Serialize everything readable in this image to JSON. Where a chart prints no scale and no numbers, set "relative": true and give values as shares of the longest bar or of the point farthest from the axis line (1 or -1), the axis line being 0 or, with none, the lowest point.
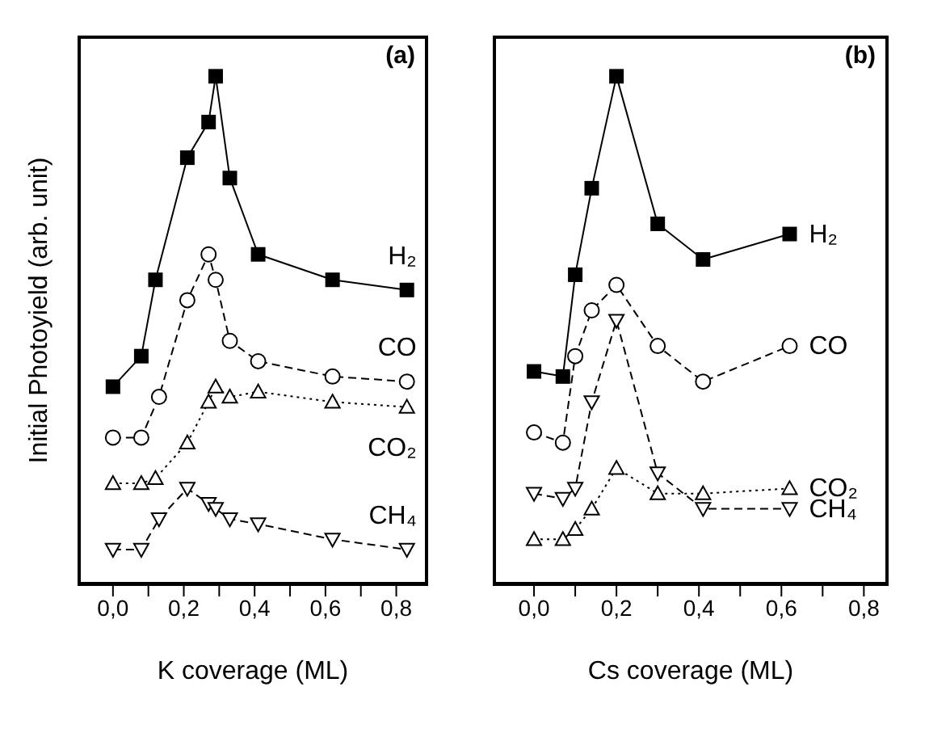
{
  "chart_data": [
    {
      "type": "line",
      "title": "(a)",
      "xlabel": "K coverage (ML)",
      "ylabel": "Initial Photoyield (arb. unit)",
      "relative": true,
      "xlim": [
        -0.1,
        0.89
      ],
      "xticks": [
        {
          "value": 0,
          "label": "0,0"
        },
        {
          "value": 0.1,
          "label": null
        },
        {
          "value": 0.2,
          "label": "0,2"
        },
        {
          "value": 0.3,
          "label": null
        },
        {
          "value": 0.4,
          "label": "0,4"
        },
        {
          "value": 0.5,
          "label": null
        },
        {
          "value": 0.6,
          "label": "0,6"
        },
        {
          "value": 0.7,
          "label": null
        },
        {
          "value": 0.8,
          "label": "0,8"
        }
      ],
      "series": [
        {
          "name": "H₂",
          "color": "#000000",
          "marker": "square",
          "line_style": "solid",
          "x": [
            0,
            0.08,
            0.12,
            0.21,
            0.27,
            0.29,
            0.33,
            0.41,
            0.62,
            0.83
          ],
          "values": [
            0.39,
            0.45,
            0.6,
            0.84,
            0.91,
            1.0,
            0.8,
            0.65,
            0.6,
            0.58
          ]
        },
        {
          "name": "CO",
          "color": "#000000",
          "marker": "circle",
          "line_style": "dashed",
          "x": [
            0,
            0.08,
            0.13,
            0.21,
            0.27,
            0.29,
            0.33,
            0.41,
            0.62,
            0.83
          ],
          "values": [
            0.29,
            0.29,
            0.37,
            0.56,
            0.65,
            0.6,
            0.48,
            0.44,
            0.41,
            0.4
          ]
        },
        {
          "name": "CO₂",
          "color": "#000000",
          "marker": "triangle",
          "line_style": "dotted",
          "x": [
            0,
            0.08,
            0.12,
            0.21,
            0.27,
            0.29,
            0.33,
            0.41,
            0.62,
            0.83
          ],
          "values": [
            0.2,
            0.2,
            0.21,
            0.28,
            0.36,
            0.39,
            0.37,
            0.38,
            0.36,
            0.35
          ]
        },
        {
          "name": "CH₄",
          "color": "#000000",
          "marker": "triangle-down",
          "line_style": "dashed",
          "x": [
            0,
            0.08,
            0.13,
            0.21,
            0.27,
            0.29,
            0.33,
            0.41,
            0.62,
            0.83
          ],
          "values": [
            0.07,
            0.07,
            0.13,
            0.19,
            0.16,
            0.15,
            0.13,
            0.12,
            0.09,
            0.07
          ]
        }
      ]
    },
    {
      "type": "line",
      "title": "(b)",
      "xlabel": "Cs coverage (ML)",
      "relative": true,
      "xlim": [
        -0.1,
        0.86
      ],
      "xticks": [
        {
          "value": 0,
          "label": "0,0"
        },
        {
          "value": 0.1,
          "label": null
        },
        {
          "value": 0.2,
          "label": "0,2"
        },
        {
          "value": 0.3,
          "label": null
        },
        {
          "value": 0.4,
          "label": "0,4"
        },
        {
          "value": 0.5,
          "label": null
        },
        {
          "value": 0.6,
          "label": "0,6"
        },
        {
          "value": 0.7,
          "label": null
        },
        {
          "value": 0.8,
          "label": "0,8"
        }
      ],
      "series": [
        {
          "name": "H₂",
          "color": "#000000",
          "marker": "square",
          "line_style": "solid",
          "x": [
            0,
            0.07,
            0.1,
            0.14,
            0.2,
            0.3,
            0.41,
            0.62
          ],
          "values": [
            0.42,
            0.41,
            0.61,
            0.78,
            1.0,
            0.71,
            0.64,
            0.69
          ]
        },
        {
          "name": "CO",
          "color": "#000000",
          "marker": "circle",
          "line_style": "dashed",
          "x": [
            0,
            0.07,
            0.1,
            0.14,
            0.2,
            0.3,
            0.41,
            0.62
          ],
          "values": [
            0.3,
            0.28,
            0.45,
            0.54,
            0.59,
            0.47,
            0.4,
            0.47
          ]
        },
        {
          "name": "CO₂",
          "color": "#000000",
          "marker": "triangle",
          "line_style": "dotted",
          "x": [
            0,
            0.07,
            0.1,
            0.14,
            0.2,
            0.3,
            0.41,
            0.62
          ],
          "values": [
            0.09,
            0.09,
            0.11,
            0.15,
            0.23,
            0.18,
            0.18,
            0.19
          ]
        },
        {
          "name": "CH₄",
          "color": "#000000",
          "marker": "triangle-down",
          "line_style": "dashed",
          "x": [
            0,
            0.07,
            0.1,
            0.14,
            0.2,
            0.3,
            0.41,
            0.62
          ],
          "values": [
            0.18,
            0.17,
            0.19,
            0.36,
            0.52,
            0.22,
            0.15,
            0.15
          ]
        }
      ]
    }
  ]
}
